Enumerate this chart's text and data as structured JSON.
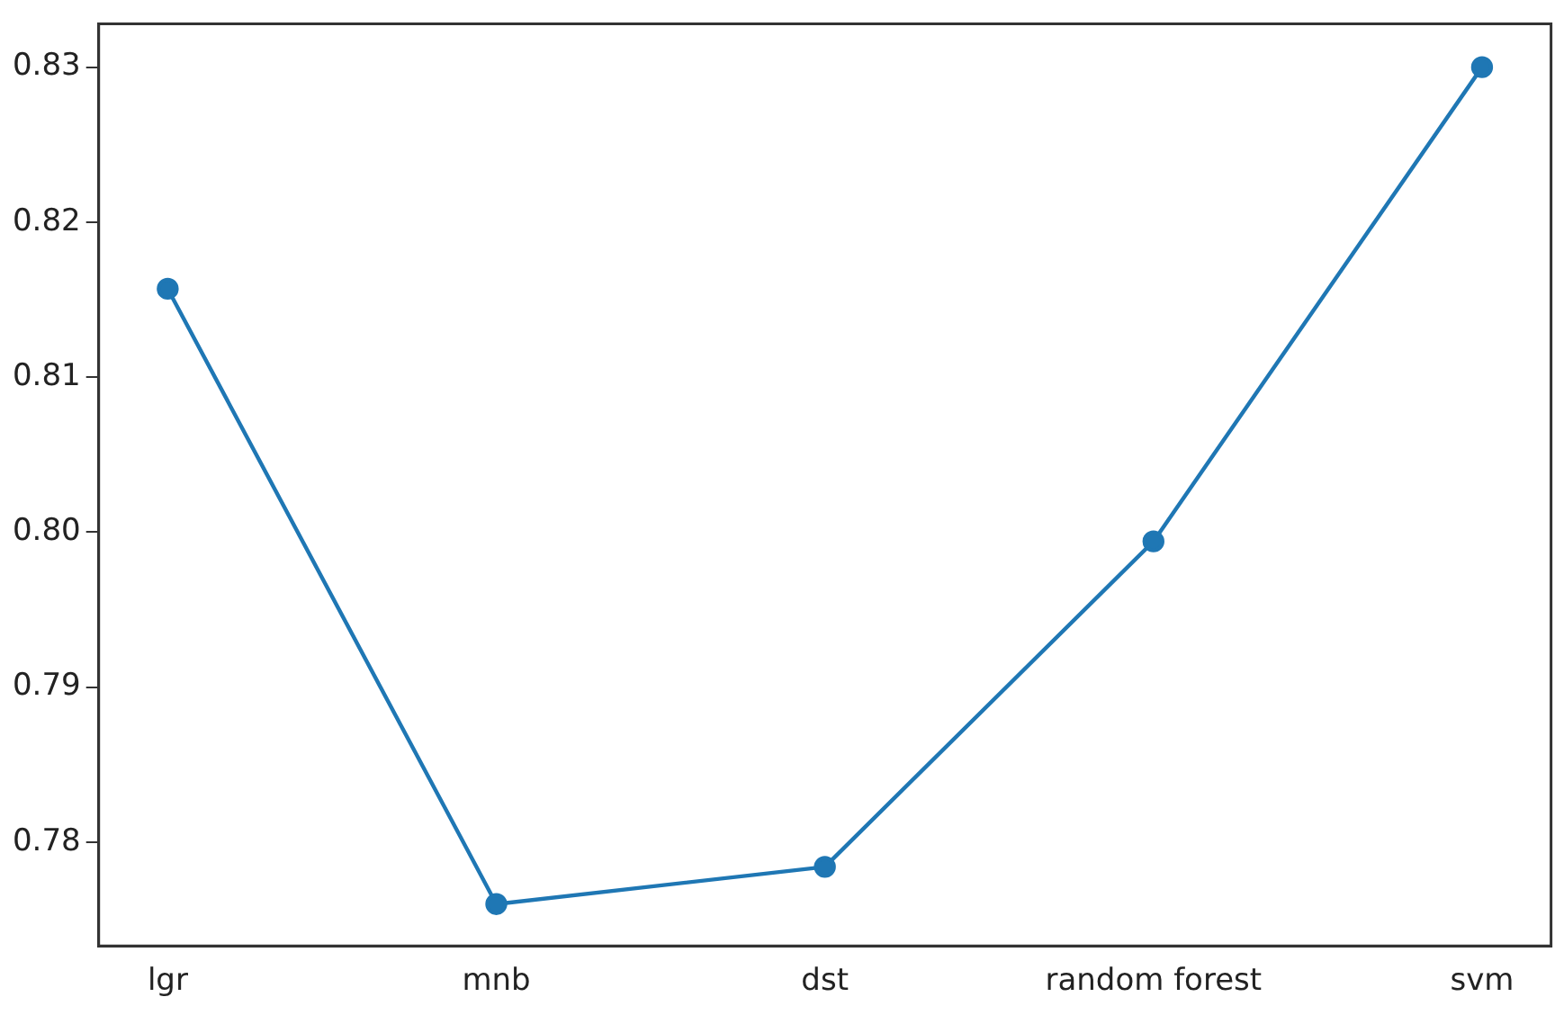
{
  "chart_data": {
    "type": "line",
    "categories": [
      "lgr",
      "mnb",
      "dst",
      "random forest",
      "svm"
    ],
    "series": [
      {
        "color": "#1f77b4",
        "values": [
          0.8157,
          0.776,
          0.7784,
          0.7994,
          0.83
        ]
      }
    ],
    "ylim": [
      0.7733,
      0.8328
    ],
    "yticks": [
      0.78,
      0.79,
      {
        "value": 0.8,
        "label": "0.80"
      },
      0.81,
      0.82,
      0.83
    ],
    "marker": "circle",
    "grid": false,
    "legend": false
  }
}
